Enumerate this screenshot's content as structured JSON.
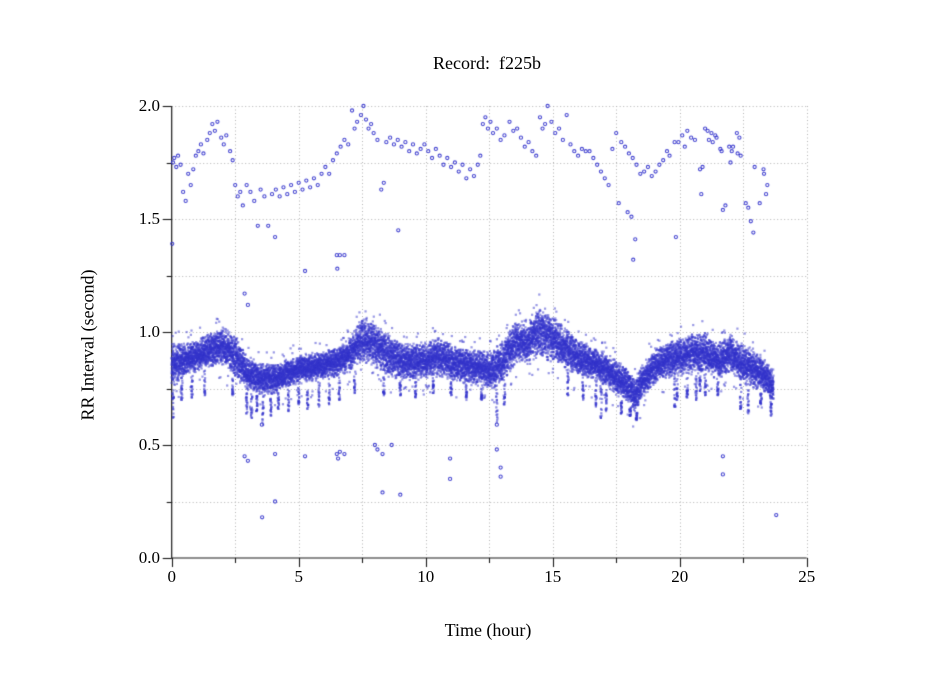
{
  "title": "Record:  f225b",
  "colors": {
    "marker": "#3333cc",
    "grid": "#b3b3b3",
    "axis": "#1a1a1a",
    "background": "#ffffff",
    "text": "#000000"
  },
  "chart_data": {
    "type": "scatter",
    "title": "Record:  f225b",
    "xlabel": "Time (hour)",
    "ylabel": "RR Interval (second)",
    "xlim": [
      0,
      25
    ],
    "ylim": [
      0.0,
      2.0
    ],
    "x_major_ticks": [
      {
        "v": 0,
        "label": "0"
      },
      {
        "v": 5,
        "label": "5"
      },
      {
        "v": 10,
        "label": "10"
      },
      {
        "v": 15,
        "label": "15"
      },
      {
        "v": 20,
        "label": "20"
      },
      {
        "v": 25,
        "label": "25"
      }
    ],
    "x_minor_step": 2.5,
    "y_major_ticks": [
      {
        "v": 0.0,
        "label": "0.0"
      },
      {
        "v": 0.5,
        "label": "0.5"
      },
      {
        "v": 1.0,
        "label": "1.0"
      },
      {
        "v": 1.5,
        "label": "1.5"
      },
      {
        "v": 2.0,
        "label": "2.0"
      }
    ],
    "y_minor_step": 0.25,
    "grid": "dotted lines at every minor and major tick",
    "legend": "none",
    "marker": "small open circle, blue",
    "data_end_hour": 23.7,
    "band_profile_note": "dense RR band sampled as [hour, upper_edge, lower_edge] seconds",
    "band_samples": [
      [
        0,
        0.96,
        0.74
      ],
      [
        0.5,
        0.95,
        0.8
      ],
      [
        1,
        0.97,
        0.82
      ],
      [
        1.5,
        1.0,
        0.84
      ],
      [
        2,
        1.03,
        0.85
      ],
      [
        2.5,
        0.99,
        0.8
      ],
      [
        3,
        0.9,
        0.73
      ],
      [
        3.5,
        0.87,
        0.72
      ],
      [
        4,
        0.86,
        0.72
      ],
      [
        4.5,
        0.88,
        0.75
      ],
      [
        5,
        0.9,
        0.77
      ],
      [
        5.5,
        0.91,
        0.78
      ],
      [
        6,
        0.92,
        0.79
      ],
      [
        6.5,
        0.93,
        0.8
      ],
      [
        7,
        0.98,
        0.82
      ],
      [
        7.5,
        1.07,
        0.86
      ],
      [
        8,
        1.05,
        0.84
      ],
      [
        8.5,
        1.0,
        0.8
      ],
      [
        9,
        0.96,
        0.79
      ],
      [
        9.5,
        0.95,
        0.78
      ],
      [
        10,
        0.96,
        0.79
      ],
      [
        10.5,
        0.99,
        0.8
      ],
      [
        11,
        0.95,
        0.78
      ],
      [
        11.5,
        0.94,
        0.77
      ],
      [
        12,
        0.93,
        0.76
      ],
      [
        12.5,
        0.92,
        0.74
      ],
      [
        13,
        0.96,
        0.76
      ],
      [
        13.5,
        1.05,
        0.84
      ],
      [
        14,
        1.06,
        0.85
      ],
      [
        14.5,
        1.12,
        0.88
      ],
      [
        15,
        1.08,
        0.86
      ],
      [
        15.5,
        1.02,
        0.83
      ],
      [
        16,
        0.97,
        0.8
      ],
      [
        16.5,
        0.94,
        0.78
      ],
      [
        17,
        0.92,
        0.76
      ],
      [
        17.5,
        0.88,
        0.72
      ],
      [
        18,
        0.84,
        0.68
      ],
      [
        18.25,
        0.79,
        0.63
      ],
      [
        18.5,
        0.86,
        0.7
      ],
      [
        19,
        0.93,
        0.76
      ],
      [
        19.5,
        0.96,
        0.79
      ],
      [
        20,
        0.98,
        0.8
      ],
      [
        20.5,
        1.0,
        0.81
      ],
      [
        21,
        1.0,
        0.82
      ],
      [
        21.5,
        0.96,
        0.78
      ],
      [
        22,
        0.99,
        0.82
      ],
      [
        22.5,
        0.95,
        0.76
      ],
      [
        23,
        0.92,
        0.74
      ],
      [
        23.4,
        0.88,
        0.72
      ],
      [
        23.7,
        0.84,
        0.68
      ]
    ],
    "downward_spikes_note": "[hour, lowest RR reached] brief dips below the band",
    "downward_spikes": [
      [
        0.05,
        0.62
      ],
      [
        0.4,
        0.7
      ],
      [
        0.8,
        0.71
      ],
      [
        1.3,
        0.72
      ],
      [
        2.4,
        0.72
      ],
      [
        2.95,
        0.64
      ],
      [
        3.15,
        0.62
      ],
      [
        3.35,
        0.65
      ],
      [
        3.6,
        0.59
      ],
      [
        3.9,
        0.63
      ],
      [
        4.2,
        0.66
      ],
      [
        4.6,
        0.65
      ],
      [
        5.0,
        0.68
      ],
      [
        5.35,
        0.66
      ],
      [
        5.8,
        0.67
      ],
      [
        6.2,
        0.68
      ],
      [
        6.6,
        0.7
      ],
      [
        7.2,
        0.73
      ],
      [
        8.35,
        0.72
      ],
      [
        9.0,
        0.72
      ],
      [
        9.6,
        0.71
      ],
      [
        10.3,
        0.73
      ],
      [
        11.0,
        0.72
      ],
      [
        11.6,
        0.71
      ],
      [
        12.2,
        0.7
      ],
      [
        12.8,
        0.6
      ],
      [
        13.1,
        0.68
      ],
      [
        15.6,
        0.72
      ],
      [
        16.2,
        0.7
      ],
      [
        16.7,
        0.67
      ],
      [
        16.9,
        0.62
      ],
      [
        17.1,
        0.65
      ],
      [
        17.7,
        0.64
      ],
      [
        18.05,
        0.63
      ],
      [
        18.3,
        0.61
      ],
      [
        19.8,
        0.67
      ],
      [
        19.9,
        0.7
      ],
      [
        20.3,
        0.71
      ],
      [
        20.65,
        0.7
      ],
      [
        20.8,
        0.74
      ],
      [
        21.0,
        0.72
      ],
      [
        21.5,
        0.72
      ],
      [
        22.4,
        0.66
      ],
      [
        22.7,
        0.64
      ],
      [
        23.2,
        0.68
      ],
      [
        23.6,
        0.63
      ]
    ],
    "upper_points_note": "sparse long-interval beats [hour, RR seconds]",
    "upper_points": [
      [
        0.05,
        1.75
      ],
      [
        0.1,
        1.77
      ],
      [
        0.18,
        1.73
      ],
      [
        0.25,
        1.78
      ],
      [
        0.35,
        1.74
      ],
      [
        0.45,
        1.62
      ],
      [
        0.55,
        1.58
      ],
      [
        0.65,
        1.7
      ],
      [
        0.75,
        1.65
      ],
      [
        0.85,
        1.72
      ],
      [
        0.95,
        1.78
      ],
      [
        1.05,
        1.8
      ],
      [
        1.15,
        1.83
      ],
      [
        1.25,
        1.79
      ],
      [
        1.4,
        1.85
      ],
      [
        1.5,
        1.88
      ],
      [
        1.6,
        1.92
      ],
      [
        1.7,
        1.89
      ],
      [
        1.8,
        1.93
      ],
      [
        1.95,
        1.86
      ],
      [
        2.05,
        1.83
      ],
      [
        2.15,
        1.87
      ],
      [
        2.3,
        1.8
      ],
      [
        2.4,
        1.76
      ],
      [
        2.5,
        1.65
      ],
      [
        2.6,
        1.6
      ],
      [
        2.7,
        1.62
      ],
      [
        2.8,
        1.56
      ],
      [
        2.95,
        1.65
      ],
      [
        3.1,
        1.62
      ],
      [
        3.25,
        1.58
      ],
      [
        3.5,
        1.63
      ],
      [
        3.65,
        1.6
      ],
      [
        3.95,
        1.61
      ],
      [
        4.1,
        1.63
      ],
      [
        4.25,
        1.6
      ],
      [
        4.4,
        1.64
      ],
      [
        4.55,
        1.61
      ],
      [
        4.7,
        1.65
      ],
      [
        4.85,
        1.62
      ],
      [
        5.0,
        1.66
      ],
      [
        5.15,
        1.63
      ],
      [
        5.3,
        1.67
      ],
      [
        5.45,
        1.64
      ],
      [
        5.6,
        1.68
      ],
      [
        5.75,
        1.65
      ],
      [
        5.9,
        1.7
      ],
      [
        6.05,
        1.73
      ],
      [
        6.2,
        1.7
      ],
      [
        6.35,
        1.76
      ],
      [
        6.5,
        1.79
      ],
      [
        6.65,
        1.82
      ],
      [
        6.8,
        1.85
      ],
      [
        6.95,
        1.83
      ],
      [
        7.1,
        1.98
      ],
      [
        7.2,
        1.9
      ],
      [
        7.3,
        1.93
      ],
      [
        7.45,
        1.96
      ],
      [
        7.55,
        2.0
      ],
      [
        7.65,
        1.94
      ],
      [
        7.75,
        1.9
      ],
      [
        7.85,
        1.92
      ],
      [
        7.95,
        1.88
      ],
      [
        8.1,
        1.85
      ],
      [
        8.25,
        1.63
      ],
      [
        8.35,
        1.66
      ],
      [
        8.45,
        1.84
      ],
      [
        8.6,
        1.86
      ],
      [
        8.75,
        1.83
      ],
      [
        8.9,
        1.85
      ],
      [
        9.05,
        1.82
      ],
      [
        9.2,
        1.84
      ],
      [
        9.35,
        1.8
      ],
      [
        9.5,
        1.83
      ],
      [
        9.65,
        1.79
      ],
      [
        9.8,
        1.81
      ],
      [
        9.95,
        1.83
      ],
      [
        10.1,
        1.8
      ],
      [
        10.25,
        1.77
      ],
      [
        10.4,
        1.81
      ],
      [
        10.55,
        1.78
      ],
      [
        10.7,
        1.74
      ],
      [
        10.85,
        1.77
      ],
      [
        11.0,
        1.73
      ],
      [
        11.15,
        1.75
      ],
      [
        11.3,
        1.71
      ],
      [
        11.45,
        1.74
      ],
      [
        11.6,
        1.68
      ],
      [
        11.75,
        1.72
      ],
      [
        11.9,
        1.69
      ],
      [
        12.05,
        1.74
      ],
      [
        12.15,
        1.78
      ],
      [
        12.25,
        1.92
      ],
      [
        12.35,
        1.95
      ],
      [
        12.45,
        1.9
      ],
      [
        12.55,
        1.93
      ],
      [
        12.65,
        1.88
      ],
      [
        12.8,
        1.9
      ],
      [
        12.95,
        1.85
      ],
      [
        13.1,
        1.87
      ],
      [
        13.3,
        1.93
      ],
      [
        13.45,
        1.89
      ],
      [
        13.6,
        1.9
      ],
      [
        13.75,
        1.86
      ],
      [
        13.9,
        1.82
      ],
      [
        14.05,
        1.84
      ],
      [
        14.2,
        1.8
      ],
      [
        14.35,
        1.78
      ],
      [
        14.5,
        1.95
      ],
      [
        14.6,
        1.9
      ],
      [
        14.7,
        1.92
      ],
      [
        14.8,
        2.0
      ],
      [
        14.95,
        1.93
      ],
      [
        15.1,
        1.88
      ],
      [
        15.25,
        1.9
      ],
      [
        15.4,
        1.85
      ],
      [
        15.55,
        1.96
      ],
      [
        15.7,
        1.83
      ],
      [
        15.85,
        1.8
      ],
      [
        16.0,
        1.78
      ],
      [
        16.15,
        1.81
      ],
      [
        16.3,
        1.8
      ],
      [
        16.45,
        1.8
      ],
      [
        16.6,
        1.77
      ],
      [
        16.75,
        1.74
      ],
      [
        16.9,
        1.71
      ],
      [
        17.05,
        1.68
      ],
      [
        17.2,
        1.65
      ],
      [
        17.35,
        1.81
      ],
      [
        17.5,
        1.88
      ],
      [
        17.6,
        1.57
      ],
      [
        17.7,
        1.84
      ],
      [
        17.85,
        1.82
      ],
      [
        17.95,
        1.53
      ],
      [
        18.0,
        1.79
      ],
      [
        18.1,
        1.51
      ],
      [
        18.15,
        1.77
      ],
      [
        18.3,
        1.74
      ],
      [
        18.45,
        1.7
      ],
      [
        18.6,
        1.71
      ],
      [
        18.75,
        1.73
      ],
      [
        18.9,
        1.69
      ],
      [
        19.05,
        1.71
      ],
      [
        19.2,
        1.74
      ],
      [
        19.35,
        1.76
      ],
      [
        19.5,
        1.8
      ],
      [
        19.6,
        1.78
      ],
      [
        19.8,
        1.84
      ],
      [
        19.95,
        1.84
      ],
      [
        20.1,
        1.87
      ],
      [
        20.2,
        1.82
      ],
      [
        20.3,
        1.89
      ],
      [
        20.45,
        1.86
      ],
      [
        20.6,
        1.85
      ],
      [
        20.8,
        1.72
      ],
      [
        20.85,
        1.61
      ],
      [
        20.9,
        1.73
      ],
      [
        21.0,
        1.9
      ],
      [
        21.1,
        1.89
      ],
      [
        21.15,
        1.85
      ],
      [
        21.25,
        1.88
      ],
      [
        21.3,
        1.84
      ],
      [
        21.4,
        1.87
      ],
      [
        21.45,
        1.86
      ],
      [
        21.6,
        1.81
      ],
      [
        21.65,
        1.8
      ],
      [
        21.7,
        1.54
      ],
      [
        21.8,
        1.56
      ],
      [
        21.95,
        1.82
      ],
      [
        22.0,
        1.75
      ],
      [
        22.05,
        1.8
      ],
      [
        22.1,
        1.82
      ],
      [
        22.25,
        1.88
      ],
      [
        22.28,
        1.79
      ],
      [
        22.35,
        1.86
      ],
      [
        22.4,
        1.78
      ],
      [
        22.6,
        1.57
      ],
      [
        22.7,
        1.55
      ],
      [
        22.8,
        1.49
      ],
      [
        22.95,
        1.73
      ],
      [
        23.15,
        1.57
      ],
      [
        23.3,
        1.72
      ],
      [
        23.32,
        1.7
      ],
      [
        23.4,
        1.61
      ],
      [
        23.45,
        1.65
      ]
    ],
    "mid_outliers": [
      [
        0.02,
        1.39
      ],
      [
        2.87,
        1.17
      ],
      [
        3.0,
        1.12
      ],
      [
        3.39,
        1.47
      ],
      [
        3.8,
        1.47
      ],
      [
        4.07,
        1.42
      ],
      [
        5.25,
        1.27
      ],
      [
        6.5,
        1.34
      ],
      [
        6.52,
        1.28
      ],
      [
        6.62,
        1.34
      ],
      [
        6.8,
        1.34
      ],
      [
        8.92,
        1.45
      ],
      [
        18.17,
        1.32
      ],
      [
        18.25,
        1.41
      ],
      [
        19.85,
        1.42
      ],
      [
        22.9,
        1.44
      ]
    ],
    "low_outliers": [
      [
        2.87,
        0.45
      ],
      [
        3.0,
        0.43
      ],
      [
        3.55,
        0.59
      ],
      [
        3.56,
        0.18
      ],
      [
        4.07,
        0.46
      ],
      [
        4.07,
        0.25
      ],
      [
        5.25,
        0.45
      ],
      [
        6.5,
        0.46
      ],
      [
        6.55,
        0.44
      ],
      [
        6.62,
        0.47
      ],
      [
        6.8,
        0.46
      ],
      [
        8.0,
        0.5
      ],
      [
        8.1,
        0.48
      ],
      [
        8.3,
        0.46
      ],
      [
        8.3,
        0.29
      ],
      [
        8.66,
        0.5
      ],
      [
        9.0,
        0.28
      ],
      [
        10.96,
        0.44
      ],
      [
        10.96,
        0.35
      ],
      [
        12.8,
        0.59
      ],
      [
        12.8,
        0.48
      ],
      [
        12.95,
        0.4
      ],
      [
        12.95,
        0.36
      ],
      [
        21.7,
        0.45
      ],
      [
        21.7,
        0.37
      ],
      [
        23.8,
        0.19
      ]
    ]
  }
}
